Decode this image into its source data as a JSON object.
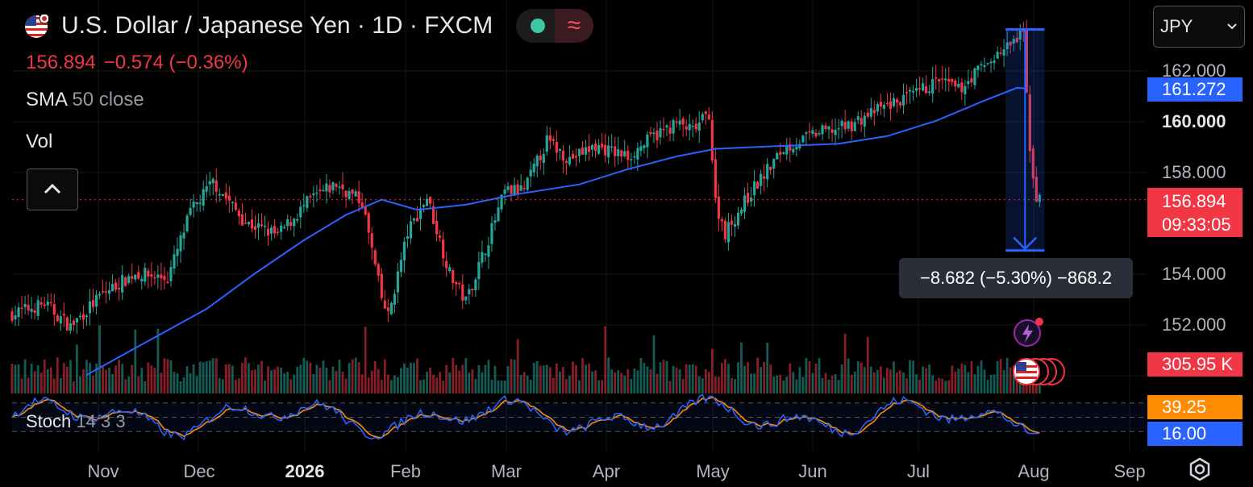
{
  "header": {
    "title": "U.S. Dollar / Japanese Yen · 1D · FXCM",
    "last_price": "156.894",
    "change": "−0.574 (−0.36%)",
    "sma_label": "SMA",
    "sma_params": "50 close",
    "vol_label": "Vol",
    "currency_select": "JPY"
  },
  "colors": {
    "up": "#26a69a",
    "down": "#f23645",
    "sma": "#2962ff",
    "k": "#2962ff",
    "d": "#ff8c00"
  },
  "tags": {
    "sma_value": "161.272",
    "last_price": "156.894",
    "countdown": "09:33:05",
    "volume": "305.95 K",
    "stoch_k": "39.25",
    "stoch_d": "16.00"
  },
  "measure": {
    "text": "−8.682 (−5.30%) −868.2"
  },
  "stoch": {
    "label": "Stoch",
    "params": "14 3 3"
  },
  "chart_data": {
    "type": "candlestick",
    "symbol": "USDJPY",
    "ylim": [
      150.0,
      163.9
    ],
    "y_ticks": [
      "162.000",
      "160.000",
      "158.000",
      "154.000",
      "152.000"
    ],
    "x_ticks": [
      "Nov",
      "Dec",
      "2026",
      "Feb",
      "Mar",
      "Apr",
      "May",
      "Jun",
      "Jul",
      "Aug",
      "Sep"
    ],
    "close_path": [
      [
        0,
        152.4
      ],
      [
        10,
        152.8
      ],
      [
        18,
        151.9
      ],
      [
        28,
        153.2
      ],
      [
        38,
        154.0
      ],
      [
        48,
        153.8
      ],
      [
        55,
        156.4
      ],
      [
        62,
        157.6
      ],
      [
        72,
        156.0
      ],
      [
        82,
        155.5
      ],
      [
        92,
        156.9
      ],
      [
        100,
        157.5
      ],
      [
        108,
        156.8
      ],
      [
        114,
        153.0
      ],
      [
        116,
        152.3
      ],
      [
        122,
        155.6
      ],
      [
        128,
        157.0
      ],
      [
        135,
        154.0
      ],
      [
        140,
        152.9
      ],
      [
        146,
        155.0
      ],
      [
        152,
        157.2
      ],
      [
        158,
        157.3
      ],
      [
        165,
        159.2
      ],
      [
        172,
        158.5
      ],
      [
        180,
        159.0
      ],
      [
        190,
        158.6
      ],
      [
        198,
        159.4
      ],
      [
        205,
        159.9
      ],
      [
        210,
        159.6
      ],
      [
        215,
        160.3
      ],
      [
        217,
        156.8
      ],
      [
        220,
        155.6
      ],
      [
        228,
        157.2
      ],
      [
        238,
        158.9
      ],
      [
        248,
        159.5
      ],
      [
        258,
        159.8
      ],
      [
        268,
        160.5
      ],
      [
        278,
        161.0
      ],
      [
        286,
        161.6
      ],
      [
        292,
        161.2
      ],
      [
        298,
        162.0
      ],
      [
        306,
        162.8
      ],
      [
        310,
        163.2
      ],
      [
        312,
        163.4
      ],
      [
        313,
        161.0
      ],
      [
        314,
        159.0
      ],
      [
        315,
        157.8
      ],
      [
        316,
        157.0
      ],
      [
        317,
        156.9
      ]
    ],
    "sma50_path": [
      [
        23,
        150.0
      ],
      [
        40,
        151.2
      ],
      [
        60,
        152.6
      ],
      [
        75,
        154.0
      ],
      [
        90,
        155.3
      ],
      [
        103,
        156.3
      ],
      [
        114,
        156.9
      ],
      [
        125,
        156.5
      ],
      [
        140,
        156.7
      ],
      [
        155,
        157.1
      ],
      [
        175,
        157.5
      ],
      [
        190,
        158.1
      ],
      [
        205,
        158.6
      ],
      [
        217,
        158.9
      ],
      [
        235,
        159.0
      ],
      [
        255,
        159.1
      ],
      [
        270,
        159.4
      ],
      [
        285,
        160.0
      ],
      [
        300,
        160.8
      ],
      [
        310,
        161.3
      ],
      [
        313,
        161.272
      ]
    ],
    "measure": {
      "from": 163.6,
      "to": 154.9,
      "change": -8.682,
      "pct": -5.3,
      "ticks": -868.2
    },
    "last_volume": "305.95 K",
    "stoch_levels": [
      80,
      20
    ]
  }
}
